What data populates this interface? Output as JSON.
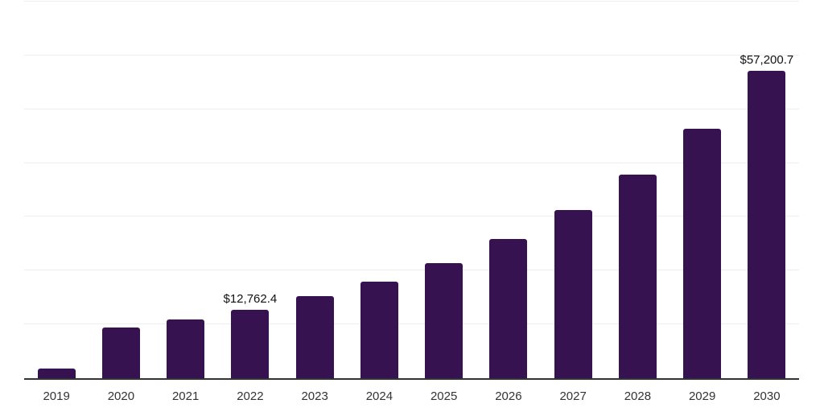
{
  "chart_data": {
    "type": "bar",
    "title": "",
    "xlabel": "",
    "ylabel": "",
    "categories": [
      "2019",
      "2020",
      "2021",
      "2022",
      "2023",
      "2024",
      "2025",
      "2026",
      "2027",
      "2028",
      "2029",
      "2030"
    ],
    "values": [
      1800,
      9400,
      10900,
      12762.4,
      15200,
      18000,
      21400,
      25900,
      31200,
      37900,
      46400,
      57200.7
    ],
    "data_labels": [
      "",
      "",
      "",
      "$12,762.4",
      "",
      "",
      "",
      "",
      "",
      "",
      "",
      "$57,200.7"
    ],
    "ylim": [
      0,
      70000
    ],
    "gridline_interval": 10000,
    "grid": true,
    "legend_position": "none",
    "y_tick_labels_visible": false
  },
  "colors": {
    "background": "#ffffff",
    "bar": "#371250",
    "gridline": "#ededed",
    "axis_line": "#333333",
    "tick_label": "#333333",
    "data_label": "#111111"
  }
}
